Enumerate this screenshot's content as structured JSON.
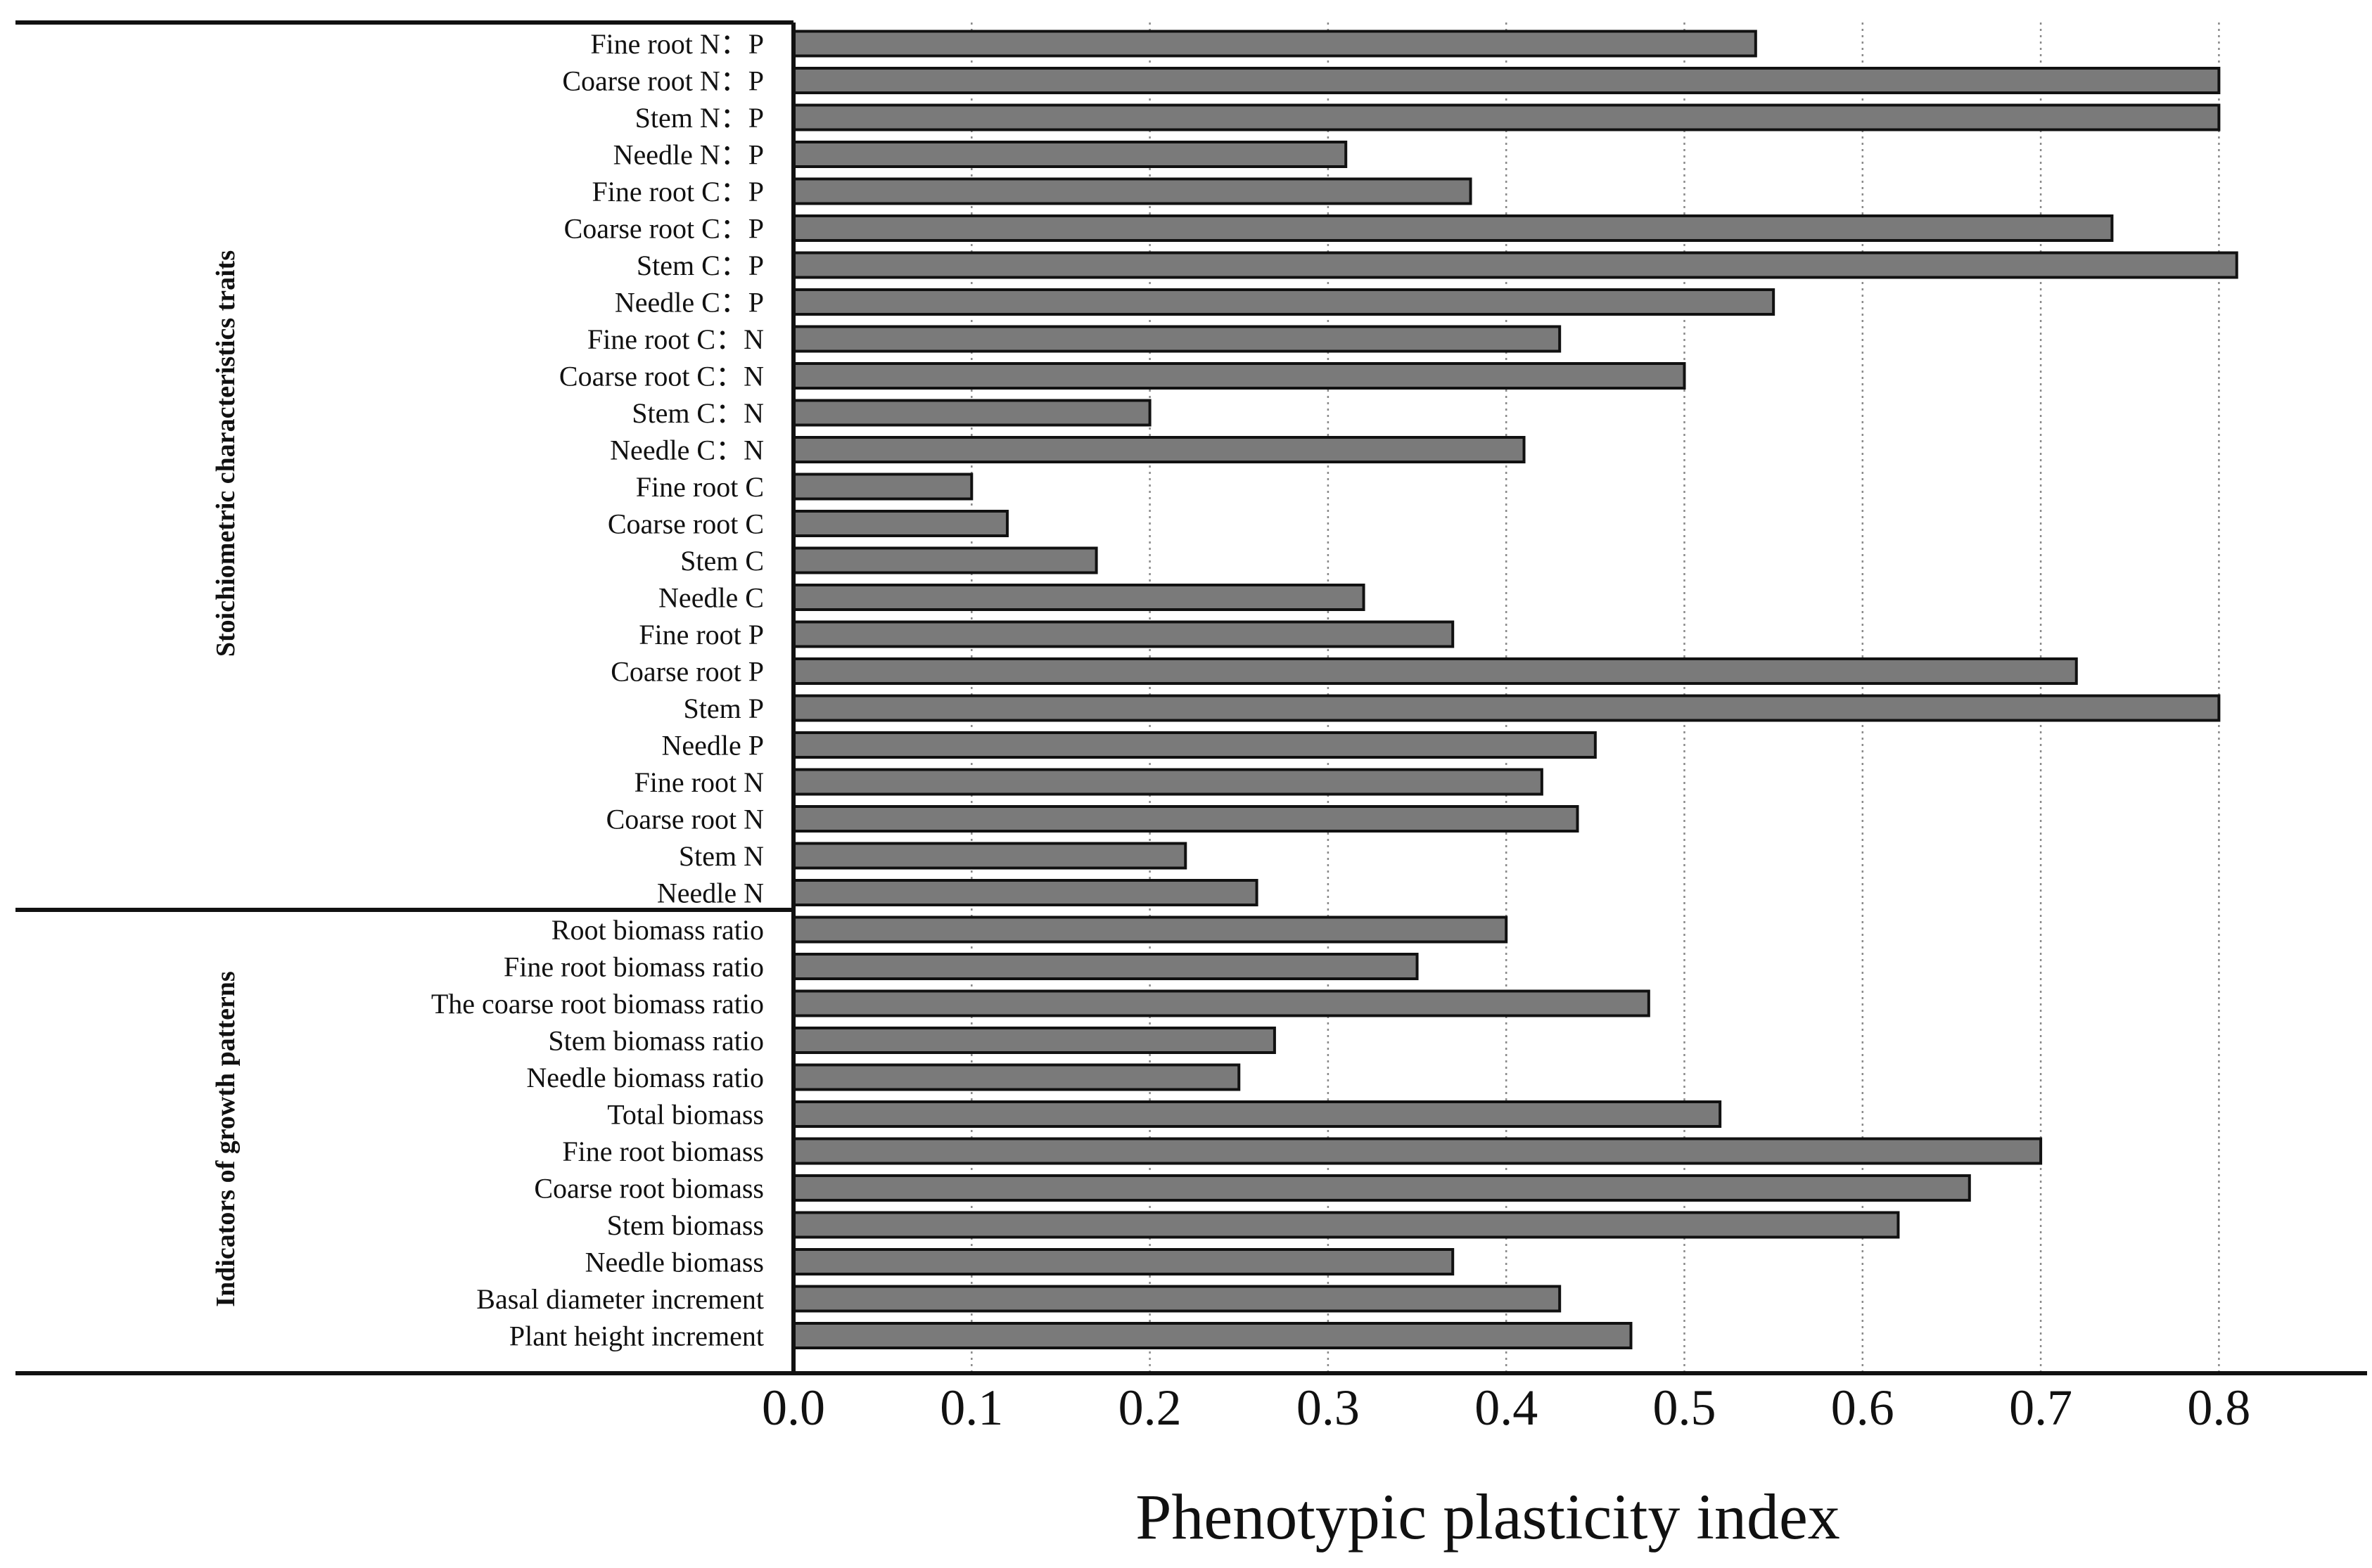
{
  "chart_data": {
    "type": "bar",
    "orientation": "horizontal",
    "xlabel": "Phenotypic plasticity index",
    "xlim": [
      0,
      0.88
    ],
    "xticks": [
      "0.0",
      "0.1",
      "0.2",
      "0.3",
      "0.4",
      "0.5",
      "0.6",
      "0.7",
      "0.8"
    ],
    "grid": "vertical dotted",
    "colors": {
      "bar_fill": "#7a7a7a",
      "bar_edge": "#111111"
    },
    "groups": [
      {
        "name": "Stoichiometric characteristics traits",
        "categories": [
          "Fine root N：P",
          "Coarse root N：P",
          "Stem N：P",
          "Needle N：P",
          "Fine root C：P",
          "Coarse root C：P",
          "Stem C：P",
          "Needle C：P",
          "Fine root C：N",
          "Coarse root C：N",
          "Stem C：N",
          "Needle C：N",
          "Fine root C",
          "Coarse root C",
          "Stem C",
          "Needle C",
          "Fine root P",
          "Coarse root P",
          "Stem P",
          "Needle P",
          "Fine root N",
          "Coarse root N",
          "Stem N",
          "Needle N"
        ],
        "values": [
          0.54,
          0.8,
          0.8,
          0.31,
          0.38,
          0.74,
          0.81,
          0.55,
          0.43,
          0.5,
          0.2,
          0.41,
          0.1,
          0.12,
          0.17,
          0.32,
          0.37,
          0.72,
          0.8,
          0.45,
          0.42,
          0.44,
          0.22,
          0.26
        ]
      },
      {
        "name": "Indicators of growth patterns",
        "categories": [
          "Root biomass ratio",
          "Fine root biomass ratio",
          "The coarse root biomass ratio",
          "Stem biomass ratio",
          "Needle biomass ratio",
          "Total biomass",
          "Fine root biomass",
          "Coarse root biomass",
          "Stem biomass",
          "Needle biomass",
          "Basal diameter increment",
          "Plant height increment"
        ],
        "values": [
          0.4,
          0.35,
          0.48,
          0.27,
          0.25,
          0.52,
          0.7,
          0.66,
          0.62,
          0.37,
          0.43,
          0.47
        ]
      }
    ]
  }
}
